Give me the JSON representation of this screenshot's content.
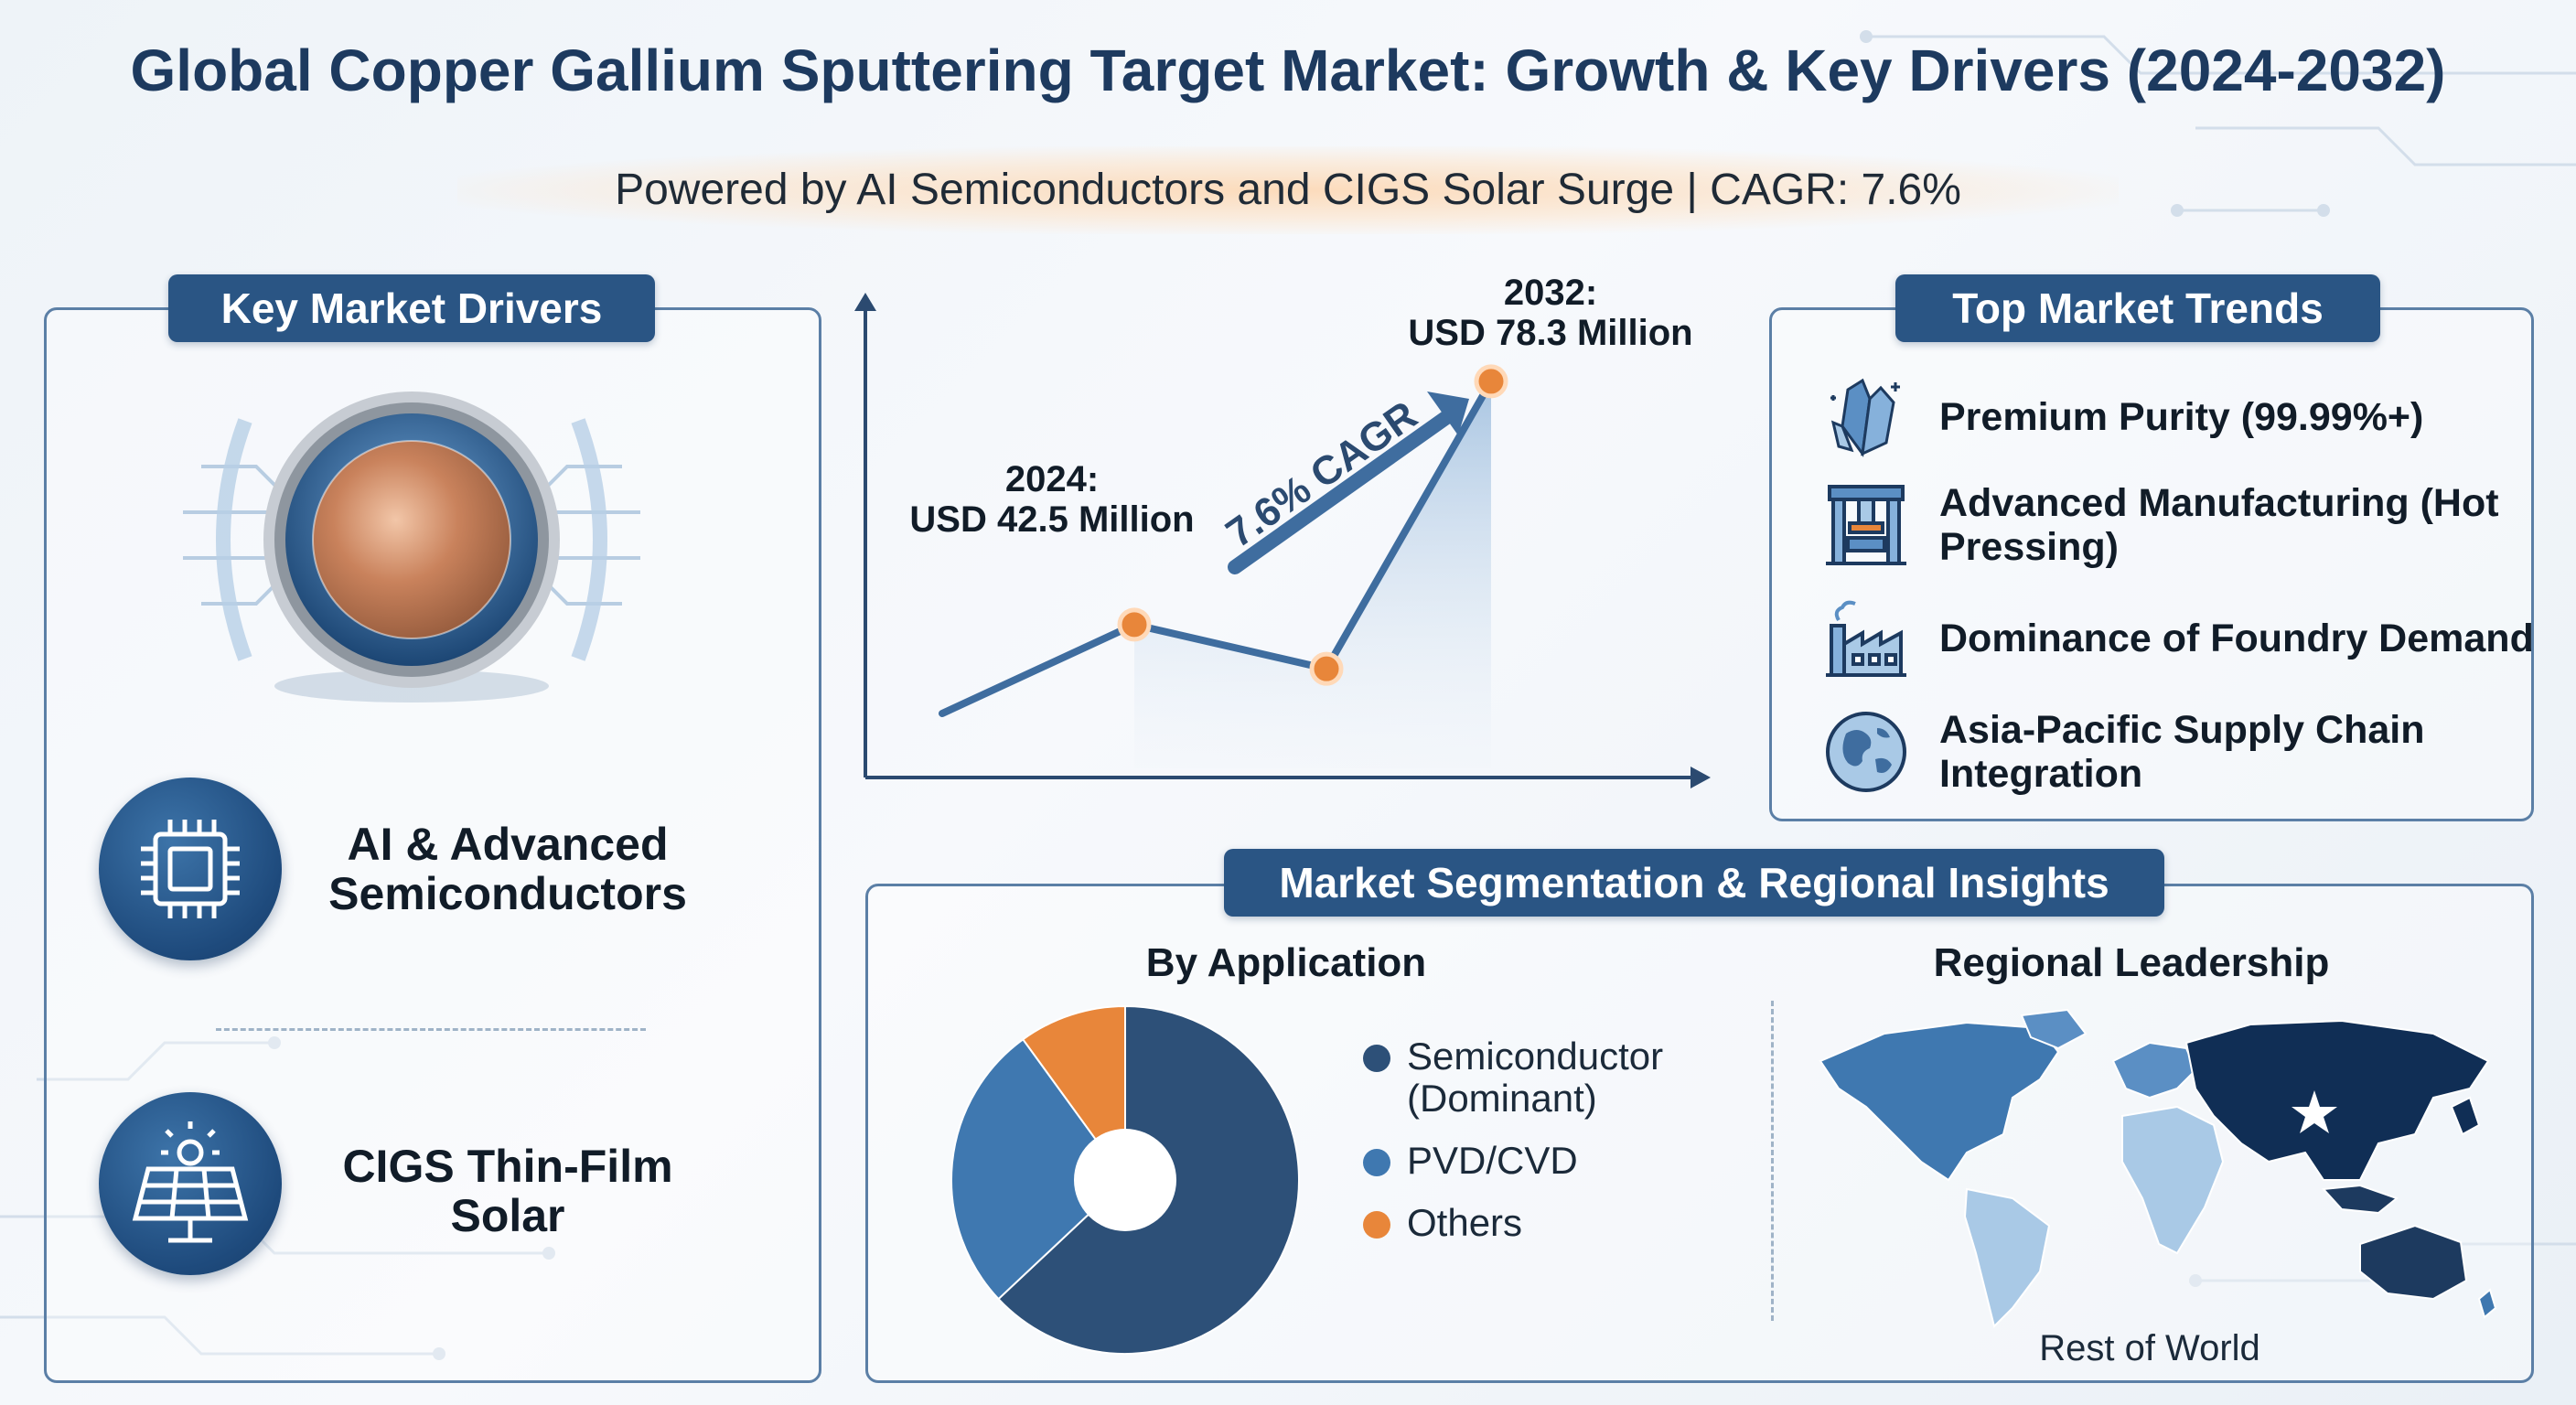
{
  "title": "Global Copper Gallium Sputtering Target Market: Growth & Key Drivers (2024-2032)",
  "subtitle": "Powered by AI Semiconductors and CIGS Solar Surge | CAGR: 7.6%",
  "colors": {
    "navy": "#1d3a5f",
    "tag_blue": "#2a5584",
    "mid_blue": "#3f78b0",
    "light_blue": "#a9c9e6",
    "accent_orange": "#e8863a"
  },
  "drivers": {
    "heading": "Key Market Drivers",
    "items": [
      {
        "label": "AI & Advanced Semiconductors",
        "icon": "chip-icon"
      },
      {
        "label": "CIGS Thin-Film Solar",
        "icon": "solar-panel-icon"
      }
    ]
  },
  "growth": {
    "start_label": "2024:\nUSD 42.5 Million",
    "end_label": "2032:\nUSD 78.3 Million",
    "cagr_label": "7.6% CAGR"
  },
  "chart_data": [
    {
      "type": "line",
      "x": [
        "2024",
        "",
        "2032"
      ],
      "series": [
        {
          "values": [
            42.5,
            36.0,
            78.3
          ]
        }
      ],
      "annotations": [
        "2024: USD 42.5 Million",
        "2032: USD 78.3 Million",
        "7.6% CAGR"
      ]
    },
    {
      "type": "pie",
      "labels": [
        "Semiconductor (Dominant)",
        "PVD/CVD",
        "Others"
      ],
      "values": [
        63,
        27,
        10
      ]
    }
  ],
  "trends": {
    "heading": "Top Market Trends",
    "items": [
      {
        "label": "Premium Purity (99.99%+)",
        "icon": "crystal-icon"
      },
      {
        "label": "Advanced Manufacturing (Hot Pressing)",
        "icon": "press-machine-icon"
      },
      {
        "label": "Dominance of Foundry Demand",
        "icon": "factory-icon"
      },
      {
        "label": "Asia-Pacific Supply Chain Integration",
        "icon": "globe-icon"
      }
    ]
  },
  "segmentation": {
    "heading": "Market Segmentation & Regional Insights",
    "by_application": "By Application",
    "legend": [
      {
        "label": "Semiconductor\n(Dominant)",
        "color": "#2d5078"
      },
      {
        "label": "PVD/CVD",
        "color": "#3f78b0"
      },
      {
        "label": "Others",
        "color": "#e8863a"
      }
    ],
    "regional_heading": "Regional Leadership",
    "rest_of_world": "Rest of World"
  }
}
